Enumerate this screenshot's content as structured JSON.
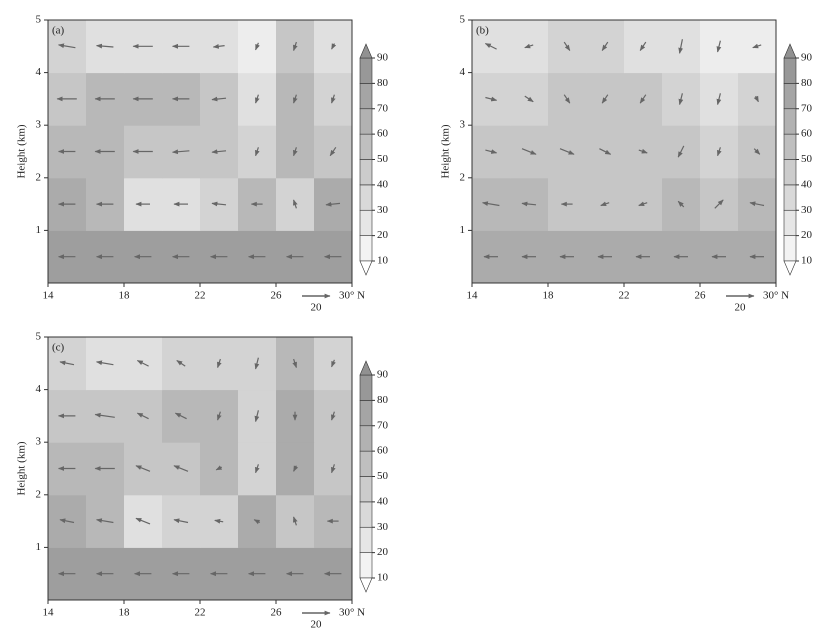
{
  "chart_data": [
    {
      "type": "vector-contour",
      "panel_label": "(a)",
      "ylabel": "Height (km)",
      "xlim": [
        14,
        30
      ],
      "ylim": [
        0,
        5
      ],
      "xticks": [
        14,
        18,
        22,
        26,
        {
          "value": 30,
          "label": "30° N"
        }
      ],
      "yticks": [
        1,
        2,
        3,
        4,
        5
      ],
      "cbar_ticks": [
        10,
        20,
        30,
        40,
        50,
        60,
        70,
        80,
        90
      ],
      "reference_vector": 20,
      "x": [
        15,
        17,
        19,
        21,
        23,
        25,
        27,
        29
      ],
      "y": [
        0.5,
        1.5,
        2.5,
        3.5,
        4.5
      ],
      "z": [
        [
          80,
          80,
          80,
          80,
          80,
          80,
          80,
          80
        ],
        [
          70,
          60,
          30,
          30,
          40,
          60,
          40,
          70
        ],
        [
          60,
          60,
          50,
          50,
          50,
          40,
          60,
          50
        ],
        [
          50,
          60,
          60,
          60,
          50,
          30,
          60,
          40
        ],
        [
          40,
          30,
          30,
          30,
          30,
          20,
          50,
          30
        ]
      ],
      "u": [
        [
          -12,
          -12,
          -12,
          -12,
          -12,
          -12,
          -12,
          -12
        ],
        [
          -12,
          -12,
          -10,
          -10,
          -10,
          -8,
          -2,
          -10
        ],
        [
          -12,
          -14,
          -14,
          -12,
          -10,
          -2,
          -2,
          -4
        ],
        [
          -14,
          -14,
          -14,
          -12,
          -10,
          -2,
          -2,
          -2
        ],
        [
          -12,
          -12,
          -14,
          -12,
          -8,
          -2,
          -2,
          -2
        ]
      ],
      "w": [
        [
          0,
          0,
          0,
          0,
          0,
          0,
          0,
          0
        ],
        [
          0,
          0,
          0,
          0,
          1,
          0,
          6,
          -1
        ],
        [
          0,
          0,
          0,
          -1,
          -1,
          -6,
          -6,
          -6
        ],
        [
          0,
          0,
          0,
          0,
          -1,
          -6,
          -6,
          -6
        ],
        [
          2,
          1,
          0,
          0,
          -1,
          -5,
          -6,
          -4
        ]
      ]
    },
    {
      "type": "vector-contour",
      "panel_label": "(b)",
      "ylabel": "Height (km)",
      "xlim": [
        14,
        30
      ],
      "ylim": [
        0,
        5
      ],
      "xticks": [
        14,
        18,
        22,
        26,
        {
          "value": 30,
          "label": "30° N"
        }
      ],
      "yticks": [
        1,
        2,
        3,
        4,
        5
      ],
      "cbar_ticks": [
        10,
        20,
        30,
        40,
        50,
        60,
        70,
        80,
        90
      ],
      "reference_vector": 20,
      "x": [
        15,
        17,
        19,
        21,
        23,
        25,
        27,
        29
      ],
      "y": [
        0.5,
        1.5,
        2.5,
        3.5,
        4.5
      ],
      "z": [
        [
          70,
          70,
          70,
          70,
          70,
          70,
          70,
          70
        ],
        [
          60,
          60,
          50,
          50,
          50,
          60,
          50,
          60
        ],
        [
          50,
          50,
          50,
          50,
          50,
          50,
          40,
          50
        ],
        [
          40,
          40,
          50,
          50,
          50,
          40,
          30,
          40
        ],
        [
          30,
          30,
          40,
          40,
          30,
          30,
          20,
          20
        ]
      ],
      "u": [
        [
          -10,
          -10,
          -10,
          -10,
          -10,
          -10,
          -10,
          -10
        ],
        [
          -12,
          -10,
          -8,
          -6,
          -6,
          -4,
          6,
          -10
        ],
        [
          8,
          10,
          10,
          8,
          6,
          -4,
          -2,
          4
        ],
        [
          8,
          6,
          4,
          -4,
          -4,
          -2,
          -2,
          2
        ],
        [
          -8,
          -6,
          4,
          -4,
          -4,
          -2,
          -2,
          -6
        ]
      ],
      "w": [
        [
          0,
          0,
          0,
          0,
          0,
          0,
          0,
          0
        ],
        [
          2,
          1,
          0,
          -2,
          -2,
          4,
          6,
          2
        ],
        [
          -2,
          -4,
          -4,
          -4,
          -2,
          -8,
          -6,
          -4
        ],
        [
          -2,
          -4,
          -6,
          -6,
          -6,
          -8,
          -8,
          -4
        ],
        [
          4,
          -2,
          -6,
          -6,
          -6,
          -10,
          -8,
          -2
        ]
      ]
    },
    {
      "type": "vector-contour",
      "panel_label": "(c)",
      "ylabel": "Height (km)",
      "xlim": [
        14,
        30
      ],
      "ylim": [
        0,
        5
      ],
      "xticks": [
        14,
        18,
        22,
        26,
        {
          "value": 30,
          "label": "30° N"
        }
      ],
      "yticks": [
        1,
        2,
        3,
        4,
        5
      ],
      "cbar_ticks": [
        10,
        20,
        30,
        40,
        50,
        60,
        70,
        80,
        90
      ],
      "reference_vector": 20,
      "x": [
        15,
        17,
        19,
        21,
        23,
        25,
        27,
        29
      ],
      "y": [
        0.5,
        1.5,
        2.5,
        3.5,
        4.5
      ],
      "z": [
        [
          80,
          80,
          80,
          80,
          80,
          80,
          80,
          80
        ],
        [
          70,
          60,
          30,
          40,
          40,
          70,
          50,
          60
        ],
        [
          60,
          60,
          50,
          50,
          60,
          40,
          70,
          50
        ],
        [
          50,
          50,
          50,
          60,
          60,
          40,
          70,
          50
        ],
        [
          40,
          30,
          30,
          40,
          40,
          40,
          60,
          40
        ]
      ],
      "u": [
        [
          -12,
          -12,
          -12,
          -12,
          -12,
          -12,
          -12,
          -12
        ],
        [
          -10,
          -12,
          -10,
          -10,
          -6,
          -4,
          -2,
          -8
        ],
        [
          -12,
          -14,
          -10,
          -10,
          -4,
          -2,
          -2,
          -2
        ],
        [
          -12,
          -14,
          -8,
          -8,
          -2,
          -2,
          0,
          -2
        ],
        [
          -10,
          -12,
          -8,
          -6,
          -2,
          -2,
          2,
          -2
        ]
      ],
      "w": [
        [
          0,
          0,
          0,
          0,
          0,
          0,
          0,
          0
        ],
        [
          2,
          2,
          4,
          2,
          1,
          2,
          6,
          0
        ],
        [
          0,
          0,
          4,
          4,
          -2,
          -6,
          -4,
          -6
        ],
        [
          0,
          2,
          4,
          4,
          -6,
          -8,
          -6,
          -6
        ],
        [
          2,
          2,
          4,
          4,
          -6,
          -8,
          -6,
          -5
        ]
      ]
    }
  ]
}
